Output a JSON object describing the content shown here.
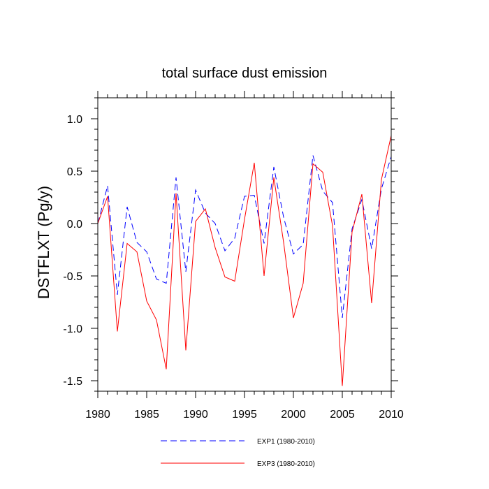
{
  "chart_data": {
    "type": "line",
    "title": "total surface dust emission",
    "xlabel": "",
    "ylabel": "DSTFLXT  (Pg/y)",
    "xlim": [
      1980,
      2010
    ],
    "ylim": [
      -1.6,
      1.2
    ],
    "xticks": [
      1980,
      1985,
      1990,
      1995,
      2000,
      2005,
      2010
    ],
    "yticks": [
      1.0,
      0.5,
      0.0,
      -0.5,
      -1.0,
      -1.5
    ],
    "ytick_labels": [
      "1.0",
      "0.5",
      "0.0",
      "-0.5",
      "-1.0",
      "-1.5"
    ],
    "x": [
      1980,
      1981,
      1982,
      1983,
      1984,
      1985,
      1986,
      1987,
      1988,
      1989,
      1990,
      1991,
      1992,
      1993,
      1994,
      1995,
      1996,
      1997,
      1998,
      1999,
      2000,
      2001,
      2002,
      2003,
      2004,
      2005,
      2006,
      2007,
      2008,
      2009,
      2010
    ],
    "series": [
      {
        "name": "EXP1 (1980-2010)",
        "color": "#0000ff",
        "dash": "dashed",
        "values": [
          0.0,
          0.36,
          -0.68,
          0.16,
          -0.18,
          -0.27,
          -0.53,
          -0.57,
          0.44,
          -0.46,
          0.32,
          0.1,
          0.0,
          -0.26,
          -0.14,
          0.26,
          0.27,
          -0.19,
          0.54,
          0.06,
          -0.29,
          -0.2,
          0.65,
          0.31,
          0.2,
          -0.9,
          -0.05,
          0.23,
          -0.24,
          0.33,
          0.64
        ]
      },
      {
        "name": "EXP3 (1980-2010)",
        "color": "#ff0000",
        "dash": "solid",
        "values": [
          0.0,
          0.26,
          -1.03,
          -0.19,
          -0.27,
          -0.74,
          -0.92,
          -1.39,
          0.29,
          -1.21,
          0.02,
          0.14,
          -0.23,
          -0.51,
          -0.55,
          0.04,
          0.58,
          -0.5,
          0.44,
          -0.18,
          -0.9,
          -0.57,
          0.57,
          0.49,
          -0.02,
          -1.55,
          -0.08,
          0.28,
          -0.76,
          0.42,
          0.84
        ]
      }
    ],
    "grid": false,
    "legend": "bottom-center"
  }
}
